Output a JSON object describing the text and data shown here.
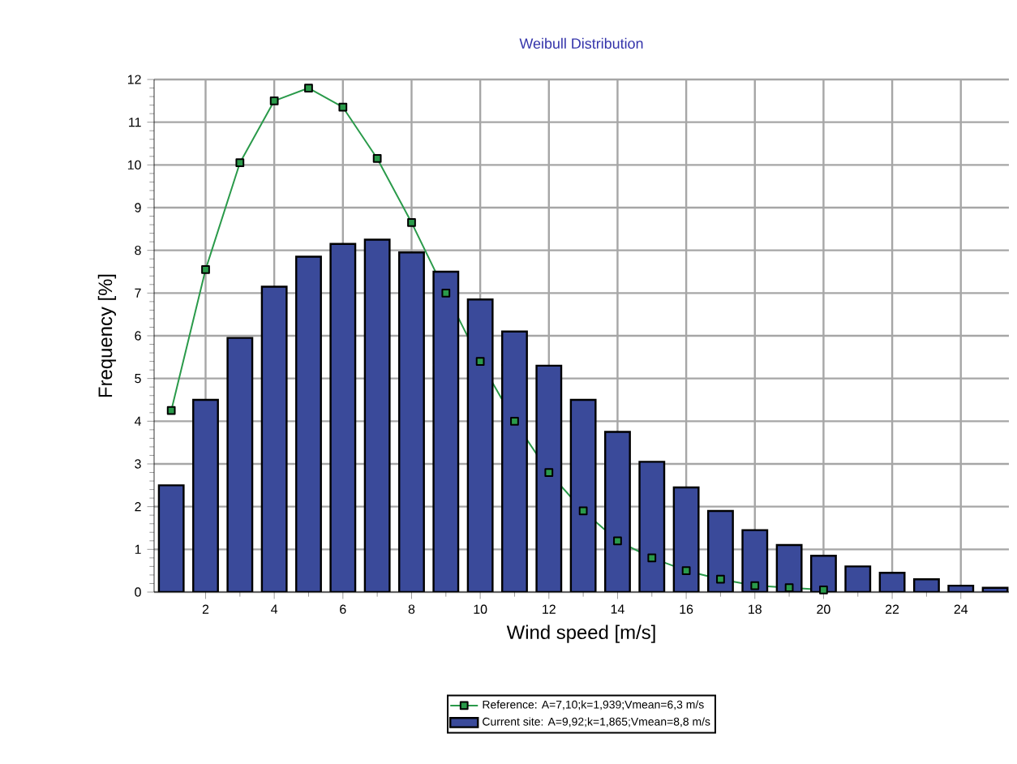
{
  "chart_data": {
    "type": "bar",
    "title": "Weibull Distribution",
    "xlabel": "Wind speed [m/s]",
    "ylabel": "Frequency [%]",
    "x": [
      1,
      2,
      3,
      4,
      5,
      6,
      7,
      8,
      9,
      10,
      11,
      12,
      13,
      14,
      15,
      16,
      17,
      18,
      19,
      20,
      21,
      22,
      23,
      24,
      25
    ],
    "series": [
      {
        "name": "Reference: A=7,10;k=1,939;Vmean=6,3 m/s",
        "type": "line",
        "color": "#2a9a4a",
        "marker": "square",
        "x": [
          1,
          2,
          3,
          4,
          5,
          6,
          7,
          8,
          9,
          10,
          11,
          12,
          13,
          14,
          15,
          16,
          17,
          18,
          19,
          20
        ],
        "values": [
          4.25,
          7.55,
          10.05,
          11.5,
          11.8,
          11.35,
          10.15,
          8.65,
          7.0,
          5.4,
          4.0,
          2.8,
          1.9,
          1.2,
          0.8,
          0.5,
          0.3,
          0.15,
          0.1,
          0.05
        ]
      },
      {
        "name": "Current site: A=9,92;k=1,865;Vmean=8,8 m/s",
        "color": "#3a4a9a",
        "values": [
          2.5,
          4.5,
          5.95,
          7.15,
          7.85,
          8.15,
          8.25,
          7.95,
          7.5,
          6.85,
          6.1,
          5.3,
          4.5,
          3.75,
          3.05,
          2.45,
          1.9,
          1.45,
          1.1,
          0.85,
          0.6,
          0.45,
          0.3,
          0.15,
          0.1
        ]
      }
    ],
    "xlim": [
      0.5,
      25.4
    ],
    "ylim": [
      0,
      12
    ],
    "xticks": [
      2,
      4,
      6,
      8,
      10,
      12,
      14,
      16,
      18,
      20,
      22,
      24
    ],
    "yticks": [
      0,
      1,
      2,
      3,
      4,
      5,
      6,
      7,
      8,
      9,
      10,
      11,
      12
    ],
    "grid": true,
    "legend": "bottom"
  }
}
